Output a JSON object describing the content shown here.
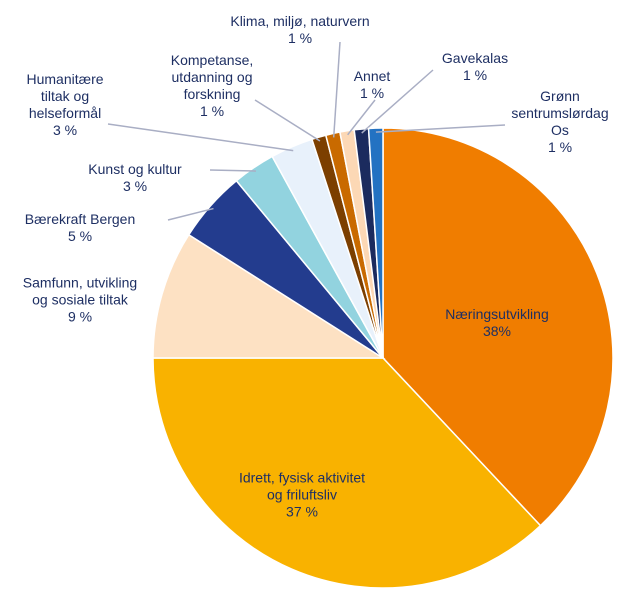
{
  "chart_data": {
    "type": "pie",
    "categories": [
      "Næringsutvikling",
      "Idrett, fysisk aktivitet\nog friluftsliv",
      "Samfunn, utvikling\nog sosiale tiltak",
      "Bærekraft Bergen",
      "Kunst og kultur",
      "Humanitære\ntiltak og\nhelseformål",
      "Kompetanse,\nutdanning og\nforskning",
      "Klima, miljø, naturvern",
      "Annet",
      "Gavekalas",
      "Grønn\nsentrumslørdag\nOs"
    ],
    "values": [
      38,
      37,
      9,
      5,
      3,
      3,
      1,
      1,
      1,
      1,
      1
    ],
    "value_labels": [
      "38%",
      "37 %",
      "9 %",
      "5 %",
      "3 %",
      "3 %",
      "1 %",
      "1 %",
      "1 %",
      "1 %",
      "1 %"
    ],
    "colors": [
      "#f07d00",
      "#f9b200",
      "#fde1c3",
      "#233c8e",
      "#92d3df",
      "#e8f1fb",
      "#7c3f00",
      "#c96a00",
      "#fcd8b5",
      "#1b2b5e",
      "#2372c2"
    ]
  }
}
